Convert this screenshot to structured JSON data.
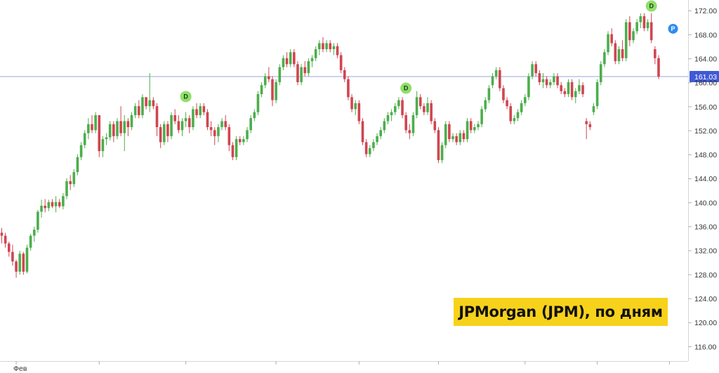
{
  "caption": "JPMorgan (JPM), по дням",
  "chart_data": {
    "type": "candlestick",
    "title": "",
    "ylim": [
      113.6,
      173.8
    ],
    "y_ticks": [
      116,
      120,
      124,
      128,
      132,
      136,
      140,
      144,
      148,
      152,
      156,
      160,
      164,
      168,
      172
    ],
    "x_labels": [
      {
        "label": "Фев",
        "index": 4
      }
    ],
    "x_tick_indices": [
      4,
      27,
      51,
      76,
      99,
      121,
      145,
      165,
      185
    ],
    "last_price": 161.03,
    "last_price_label": "161.03",
    "colors": {
      "up": "#4cae4c",
      "down": "#d04550",
      "price_line": "#9aa5e6",
      "price_tag": "#3f5ad6",
      "dividend": "#8fe06a",
      "split_marker": "#2f8cf0"
    },
    "candles": [
      [
        135,
        135.8,
        133.2,
        134.5
      ],
      [
        134.5,
        135,
        132.5,
        133.2
      ],
      [
        133.2,
        133.5,
        131,
        131.8
      ],
      [
        131.8,
        133,
        129.5,
        130.2
      ],
      [
        130.2,
        130.5,
        127.5,
        128.5
      ],
      [
        128.5,
        132,
        128,
        131.5
      ],
      [
        131.5,
        131.8,
        128,
        128.5
      ],
      [
        128.5,
        133,
        128.2,
        132.5
      ],
      [
        132.5,
        134.8,
        132,
        134.5
      ],
      [
        134.5,
        136,
        133.5,
        135.5
      ],
      [
        135.5,
        138.8,
        135,
        138.5
      ],
      [
        138.5,
        140.5,
        137.5,
        139.5
      ],
      [
        139.5,
        140.6,
        138.4,
        139.1
      ],
      [
        139.1,
        140.5,
        138.6,
        140.1
      ],
      [
        140.1,
        140.6,
        139.1,
        139.4
      ],
      [
        139.4,
        141.1,
        138.4,
        140.1
      ],
      [
        140.1,
        140.6,
        139.1,
        139.4
      ],
      [
        139.4,
        141.6,
        138.9,
        141.1
      ],
      [
        141.1,
        144.1,
        140.6,
        143.6
      ],
      [
        143.6,
        144.6,
        142.1,
        143.1
      ],
      [
        143.1,
        145.6,
        142.6,
        145.1
      ],
      [
        145.1,
        148.1,
        144.6,
        147.6
      ],
      [
        147.6,
        150.1,
        147.1,
        149.6
      ],
      [
        149.6,
        152.1,
        149.1,
        151.6
      ],
      [
        151.6,
        154.1,
        150.6,
        153.1
      ],
      [
        153.1,
        154.6,
        151.6,
        152.1
      ],
      [
        152.1,
        155.1,
        151.6,
        154.6
      ],
      [
        154.6,
        154.6,
        147.6,
        148.6
      ],
      [
        148.6,
        151.1,
        147.6,
        150.6
      ],
      [
        150.6,
        151.6,
        149.6,
        150.9
      ],
      [
        150.9,
        153.6,
        150.4,
        153.1
      ],
      [
        153.1,
        153.6,
        150.1,
        151.1
      ],
      [
        151.1,
        154.1,
        150.6,
        153.6
      ],
      [
        153.6,
        156.1,
        151.1,
        151.6
      ],
      [
        151.6,
        154.6,
        148.6,
        153.6
      ],
      [
        153.6,
        154.1,
        151.1,
        152.6
      ],
      [
        152.6,
        155.1,
        152.1,
        154.6
      ],
      [
        154.6,
        156.6,
        154.1,
        156.1
      ],
      [
        156.1,
        157.1,
        154.1,
        154.6
      ],
      [
        154.6,
        158.1,
        154.1,
        157.6
      ],
      [
        157.6,
        157.6,
        155.6,
        156.1
      ],
      [
        156.1,
        161.6,
        155.1,
        157.1
      ],
      [
        157.1,
        157.6,
        155.6,
        156.1
      ],
      [
        156.1,
        156.6,
        151.1,
        152.6
      ],
      [
        152.6,
        153.1,
        149.1,
        150.1
      ],
      [
        150.1,
        153.6,
        149.6,
        153.1
      ],
      [
        153.1,
        153.6,
        150.1,
        151.1
      ],
      [
        151.1,
        155.1,
        150.6,
        154.6
      ],
      [
        154.6,
        155.6,
        153.1,
        153.6
      ],
      [
        153.6,
        154.6,
        151.6,
        152.1
      ],
      [
        152.1,
        154.1,
        151.1,
        153.6
      ],
      [
        153.6,
        155.1,
        152.6,
        154.1
      ],
      [
        154.1,
        154.6,
        151.6,
        152.6
      ],
      [
        152.6,
        156.1,
        152.1,
        155.6
      ],
      [
        155.6,
        156.6,
        154.1,
        154.6
      ],
      [
        154.6,
        156.6,
        154.1,
        156.1
      ],
      [
        156.1,
        156.6,
        154.6,
        155.1
      ],
      [
        155.1,
        155.6,
        152.1,
        152.6
      ],
      [
        152.6,
        153.6,
        151.1,
        152.1
      ],
      [
        152.1,
        152.6,
        149.6,
        151.1
      ],
      [
        151.1,
        153.1,
        150.1,
        152.6
      ],
      [
        152.6,
        154.1,
        152.1,
        153.6
      ],
      [
        153.6,
        154.6,
        152.1,
        152.6
      ],
      [
        152.6,
        153.1,
        148.6,
        149.6
      ],
      [
        149.6,
        150.1,
        147.1,
        147.6
      ],
      [
        147.6,
        151.1,
        147.1,
        150.6
      ],
      [
        150.6,
        151.1,
        149.6,
        150.1
      ],
      [
        150.1,
        151.1,
        149.6,
        150.6
      ],
      [
        150.6,
        152.6,
        150.1,
        152.1
      ],
      [
        152.1,
        154.6,
        151.6,
        154.1
      ],
      [
        154.1,
        155.6,
        153.6,
        155.1
      ],
      [
        155.1,
        158.6,
        154.6,
        158.1
      ],
      [
        158.1,
        160.1,
        157.6,
        159.6
      ],
      [
        159.6,
        161.6,
        159.1,
        161.1
      ],
      [
        161.1,
        162.6,
        160.1,
        160.6
      ],
      [
        160.6,
        161.1,
        156.1,
        157.1
      ],
      [
        157.1,
        160.6,
        156.6,
        160.1
      ],
      [
        160.1,
        163.1,
        159.6,
        162.6
      ],
      [
        162.6,
        164.6,
        162.1,
        164.1
      ],
      [
        164.1,
        165.1,
        162.6,
        163.1
      ],
      [
        163.1,
        165.6,
        162.6,
        165.1
      ],
      [
        165.1,
        165.6,
        162.6,
        163.1
      ],
      [
        163.1,
        163.6,
        159.6,
        160.1
      ],
      [
        160.1,
        163.1,
        159.6,
        162.6
      ],
      [
        162.6,
        163.6,
        161.1,
        161.6
      ],
      [
        161.6,
        164.1,
        161.1,
        163.6
      ],
      [
        163.6,
        164.6,
        162.6,
        164.1
      ],
      [
        164.1,
        166.1,
        163.6,
        165.6
      ],
      [
        165.6,
        167.1,
        164.6,
        166.6
      ],
      [
        166.6,
        167.6,
        165.1,
        165.6
      ],
      [
        165.6,
        167.1,
        165.1,
        166.6
      ],
      [
        166.6,
        167.1,
        165.1,
        165.6
      ],
      [
        165.6,
        166.6,
        164.6,
        166.1
      ],
      [
        166.1,
        166.6,
        164.1,
        164.6
      ],
      [
        164.6,
        165.1,
        161.6,
        162.1
      ],
      [
        162.1,
        162.6,
        160.1,
        160.6
      ],
      [
        160.6,
        161.1,
        157.1,
        157.6
      ],
      [
        157.6,
        158.1,
        155.1,
        155.6
      ],
      [
        155.6,
        157.1,
        154.6,
        156.6
      ],
      [
        156.6,
        157.1,
        153.1,
        153.6
      ],
      [
        153.6,
        154.1,
        149.6,
        150.1
      ],
      [
        150.1,
        150.6,
        147.6,
        148.1
      ],
      [
        148.1,
        149.6,
        147.6,
        149.1
      ],
      [
        149.1,
        150.6,
        148.6,
        150.1
      ],
      [
        150.1,
        151.6,
        149.6,
        151.1
      ],
      [
        151.1,
        152.6,
        150.6,
        152.1
      ],
      [
        152.1,
        154.1,
        151.6,
        153.6
      ],
      [
        153.6,
        155.1,
        153.1,
        154.6
      ],
      [
        154.6,
        155.6,
        153.6,
        155.1
      ],
      [
        155.1,
        156.6,
        154.6,
        156.1
      ],
      [
        156.1,
        157.6,
        155.6,
        157.1
      ],
      [
        157.1,
        157.6,
        154.1,
        154.6
      ],
      [
        154.6,
        155.1,
        151.6,
        152.1
      ],
      [
        152.1,
        153.1,
        150.6,
        151.6
      ],
      [
        151.6,
        155.1,
        151.1,
        154.6
      ],
      [
        154.6,
        158.6,
        154.1,
        157.6
      ],
      [
        157.6,
        158.1,
        155.6,
        156.1
      ],
      [
        156.1,
        156.6,
        154.6,
        155.1
      ],
      [
        155.1,
        157.6,
        154.6,
        156.6
      ],
      [
        156.6,
        157.1,
        153.1,
        153.6
      ],
      [
        153.6,
        154.1,
        151.6,
        152.1
      ],
      [
        152.1,
        152.6,
        146.6,
        147.1
      ],
      [
        147.1,
        150.1,
        146.6,
        149.6
      ],
      [
        149.6,
        153.6,
        149.1,
        153.1
      ],
      [
        153.1,
        153.6,
        150.1,
        150.6
      ],
      [
        150.6,
        151.6,
        150.1,
        151.1
      ],
      [
        151.1,
        151.6,
        149.6,
        150.1
      ],
      [
        150.1,
        152.1,
        149.6,
        151.6
      ],
      [
        151.6,
        152.1,
        150.1,
        150.6
      ],
      [
        150.6,
        154.1,
        150.1,
        153.6
      ],
      [
        153.6,
        154.1,
        151.6,
        152.1
      ],
      [
        152.1,
        153.1,
        151.6,
        152.6
      ],
      [
        152.6,
        153.6,
        152.1,
        153.1
      ],
      [
        153.1,
        156.1,
        152.6,
        155.6
      ],
      [
        155.6,
        157.6,
        155.1,
        157.1
      ],
      [
        157.1,
        159.6,
        156.6,
        159.1
      ],
      [
        159.6,
        161.6,
        159.1,
        161.1
      ],
      [
        161.1,
        162.6,
        160.6,
        162.1
      ],
      [
        162.1,
        162.6,
        158.6,
        159.1
      ],
      [
        159.1,
        159.6,
        156.6,
        157.1
      ],
      [
        157.1,
        157.6,
        155.6,
        156.1
      ],
      [
        156.1,
        156.6,
        153.1,
        153.6
      ],
      [
        153.6,
        154.6,
        153.1,
        154.1
      ],
      [
        154.1,
        155.6,
        153.6,
        155.1
      ],
      [
        155.1,
        157.1,
        154.6,
        156.6
      ],
      [
        156.6,
        158.1,
        156.1,
        157.6
      ],
      [
        157.6,
        161.6,
        157.1,
        161.1
      ],
      [
        161.1,
        163.6,
        160.6,
        163.1
      ],
      [
        163.1,
        163.6,
        161.1,
        161.6
      ],
      [
        161.6,
        162.1,
        159.6,
        160.1
      ],
      [
        160.1,
        161.6,
        159.1,
        160.6
      ],
      [
        160.6,
        161.1,
        159.1,
        159.6
      ],
      [
        159.6,
        160.6,
        159.1,
        160.1
      ],
      [
        160.1,
        161.6,
        159.6,
        161.1
      ],
      [
        161.1,
        161.6,
        159.1,
        159.6
      ],
      [
        159.6,
        160.1,
        158.1,
        158.6
      ],
      [
        158.6,
        159.1,
        157.6,
        158.1
      ],
      [
        158.1,
        160.6,
        157.6,
        160.1
      ],
      [
        160.1,
        160.6,
        157.1,
        157.6
      ],
      [
        157.6,
        159.1,
        156.6,
        158.6
      ],
      [
        158.6,
        160.6,
        158.1,
        159.6
      ],
      [
        159.6,
        160.1,
        157.6,
        158.1
      ],
      [
        153.6,
        154.1,
        150.6,
        153.1
      ],
      [
        153.1,
        153.6,
        152.1,
        152.6
      ],
      [
        155.1,
        156.6,
        154.6,
        156.1
      ],
      [
        156.1,
        160.6,
        155.6,
        160.1
      ],
      [
        160.1,
        163.6,
        159.6,
        163.1
      ],
      [
        163.1,
        165.6,
        162.6,
        165.1
      ],
      [
        165.1,
        168.6,
        164.6,
        168.1
      ],
      [
        168.1,
        169.1,
        166.1,
        166.6
      ],
      [
        166.6,
        167.1,
        163.1,
        163.6
      ],
      [
        163.6,
        166.1,
        163.1,
        165.6
      ],
      [
        165.6,
        167.1,
        163.6,
        164.1
      ],
      [
        164.1,
        170.6,
        163.6,
        170.1
      ],
      [
        170.1,
        171.1,
        166.1,
        167.1
      ],
      [
        167.1,
        169.1,
        166.6,
        168.6
      ],
      [
        168.6,
        170.6,
        168.1,
        170.1
      ],
      [
        170.1,
        171.6,
        169.1,
        171.1
      ],
      [
        171.1,
        171.6,
        168.6,
        169.1
      ],
      [
        169.1,
        170.6,
        168.6,
        170.1
      ],
      [
        170.1,
        171.6,
        166.6,
        167.1
      ],
      [
        165.6,
        166.1,
        163.1,
        164.1
      ],
      [
        164.1,
        164.6,
        160.6,
        161.03
      ]
    ],
    "markers": [
      {
        "candle": 51,
        "price": 157.7,
        "label": "D"
      },
      {
        "candle": 112,
        "price": 159.1,
        "label": "D"
      },
      {
        "candle": 180,
        "price": 172.8,
        "label": "D"
      },
      {
        "candle": 186,
        "price": 169.0,
        "label": "P"
      }
    ]
  }
}
